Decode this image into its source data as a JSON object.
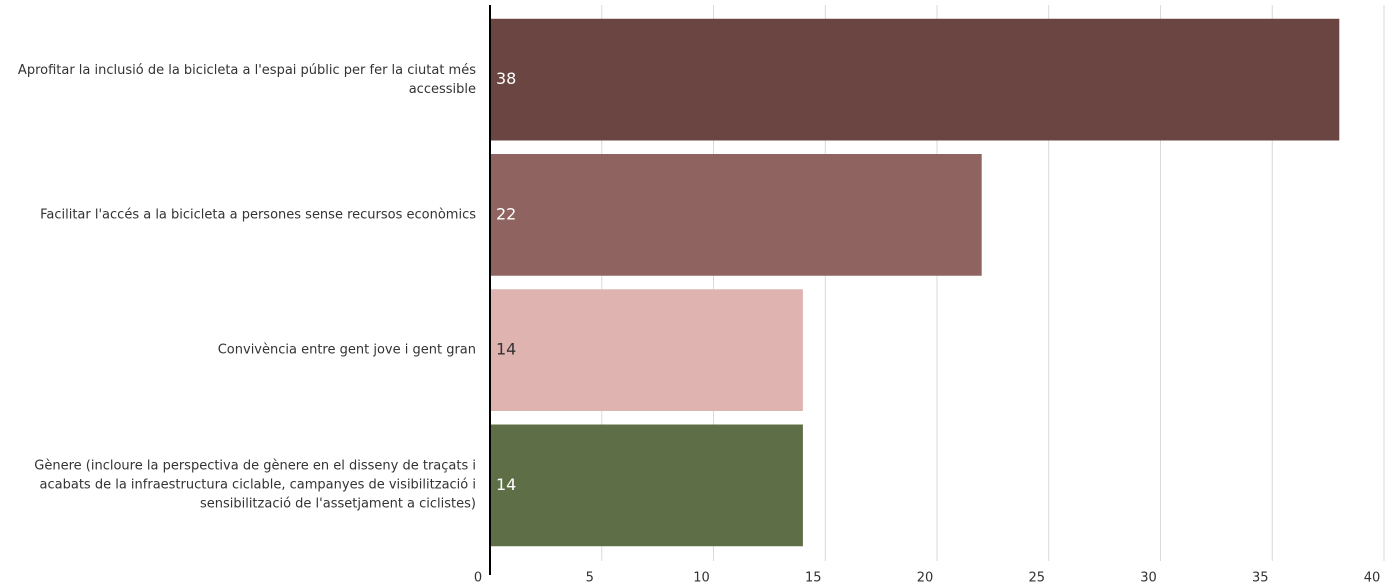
{
  "chart_data": {
    "type": "bar",
    "orientation": "horizontal",
    "categories": [
      "Aprofitar la inclusió de la bicicleta a l'espai públic per fer la ciutat més accessible",
      "Facilitar l'accés a la bicicleta a persones sense recursos econòmics",
      "Convivència entre gent jove i gent gran",
      "Gènere (incloure la perspectiva de gènere en el disseny de traçats i acabats de la infraestructura ciclable, campanyes de visibilització i sensibilització de l'assetjament a ciclistes)"
    ],
    "values": [
      38,
      22,
      14,
      14
    ],
    "colors": [
      "#6b4541",
      "#8f6360",
      "#deb3b0",
      "#5e6e47"
    ],
    "xlim": [
      0,
      40
    ],
    "xticks": [
      0,
      5,
      10,
      15,
      20,
      25,
      30,
      35,
      40
    ],
    "grid": true
  }
}
